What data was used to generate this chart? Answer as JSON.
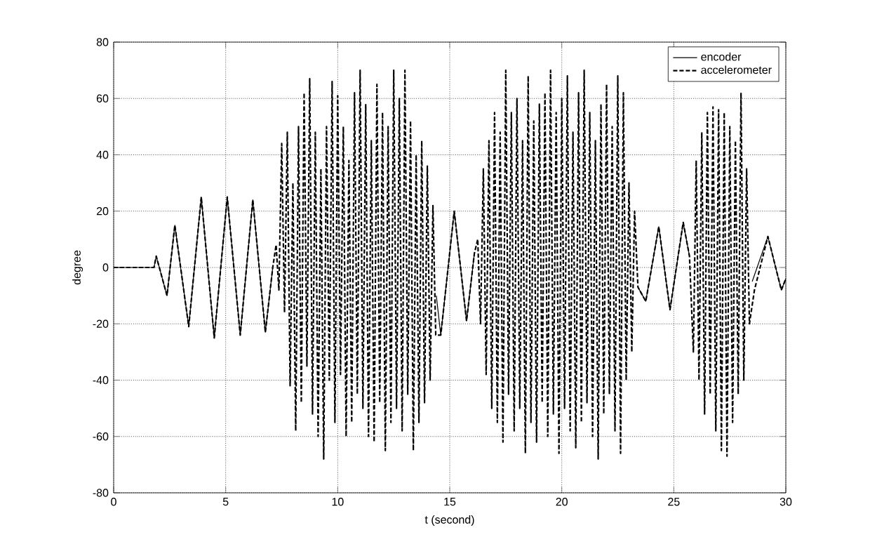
{
  "chart_data": {
    "type": "line",
    "xlabel": "t (second)",
    "ylabel": "degree",
    "xlim": [
      0,
      30
    ],
    "ylim": [
      -80,
      80
    ],
    "xticks": [
      0,
      5,
      10,
      15,
      20,
      25,
      30
    ],
    "yticks": [
      -80,
      -60,
      -40,
      -20,
      0,
      20,
      40,
      60,
      80
    ],
    "grid": true,
    "legend": "top right",
    "series": [
      {
        "name": "encoder",
        "color": "#000000",
        "line_style": "solid",
        "x": [
          0,
          1.8,
          1.9,
          2.38,
          2.73,
          3.35,
          3.91,
          4.49,
          5.07,
          5.65,
          6.21,
          6.77,
          7.1,
          10.8,
          14.4,
          14.6,
          15.2,
          15.75,
          16.1,
          20,
          23.4,
          23.75,
          24.33,
          24.83,
          25.42,
          25.7,
          27,
          28.5,
          29.2,
          29.8,
          30
        ],
        "values": [
          0,
          0,
          4,
          -10,
          15,
          -21,
          25,
          -25,
          25,
          -24,
          24,
          -23,
          0,
          null,
          -10,
          -24,
          20,
          -19,
          5,
          null,
          -7,
          -12,
          14.5,
          -15,
          16,
          4,
          null,
          -5,
          11,
          -8,
          -4
        ]
      },
      {
        "name": "accelerometer",
        "color": "#000000",
        "line_style": "dashed",
        "x": [
          0,
          1.8,
          1.9,
          2.38,
          2.73,
          3.35,
          3.91,
          4.49,
          5.07,
          5.65,
          6.21,
          6.77,
          7.1,
          7.25,
          7.375,
          7.5,
          7.625,
          7.75,
          7.875,
          8.0,
          8.125,
          8.25,
          8.375,
          8.5,
          8.625,
          8.75,
          8.875,
          9.0,
          9.125,
          9.25,
          9.375,
          9.5,
          9.625,
          9.75,
          9.875,
          10.0,
          10.125,
          10.25,
          10.375,
          10.5,
          10.625,
          10.75,
          10.875,
          11.0,
          11.125,
          11.25,
          11.375,
          11.5,
          11.625,
          11.75,
          11.875,
          12.0,
          12.125,
          12.25,
          12.375,
          12.5,
          12.625,
          12.75,
          12.875,
          13.0,
          13.125,
          13.25,
          13.375,
          13.5,
          13.625,
          13.75,
          13.875,
          14.0,
          14.125,
          14.25,
          14.375,
          14.6,
          15.2,
          15.75,
          16.1,
          16.25,
          16.375,
          16.5,
          16.625,
          16.75,
          16.875,
          17.0,
          17.125,
          17.25,
          17.375,
          17.5,
          17.625,
          17.75,
          17.875,
          18.0,
          18.125,
          18.25,
          18.375,
          18.5,
          18.625,
          18.75,
          18.875,
          19.0,
          19.125,
          19.25,
          19.375,
          19.5,
          19.625,
          19.75,
          19.875,
          20.0,
          20.125,
          20.25,
          20.375,
          20.5,
          20.625,
          20.75,
          20.875,
          21.0,
          21.125,
          21.25,
          21.375,
          21.5,
          21.625,
          21.75,
          21.875,
          22.0,
          22.125,
          22.25,
          22.375,
          22.5,
          22.625,
          22.75,
          22.875,
          23.0,
          23.125,
          23.25,
          23.4,
          23.75,
          24.33,
          24.83,
          25.42,
          25.7,
          25.875,
          26.0,
          26.125,
          26.25,
          26.375,
          26.5,
          26.625,
          26.75,
          26.875,
          27.0,
          27.125,
          27.25,
          27.375,
          27.5,
          27.625,
          27.75,
          27.875,
          28.0,
          28.125,
          28.25,
          28.375,
          28.6,
          29.2,
          29.8,
          30
        ],
        "values": [
          0,
          0,
          4,
          -10,
          15,
          -21,
          25,
          -25,
          25,
          -24,
          24,
          -23,
          0,
          8,
          -8,
          44,
          -16,
          48,
          -42,
          30,
          -58,
          50,
          -48,
          62,
          -35,
          67,
          -52,
          48,
          -60,
          35,
          -68,
          50,
          -40,
          66,
          -55,
          61,
          -38,
          50,
          -60,
          38,
          -55,
          62,
          -45,
          70,
          -50,
          58,
          -60,
          45,
          -62,
          65,
          -48,
          55,
          -65,
          50,
          -55,
          70,
          -50,
          60,
          -58,
          70,
          -45,
          52,
          -65,
          40,
          -55,
          45,
          -48,
          36,
          -40,
          22,
          -24,
          -24,
          20,
          -19,
          5,
          10,
          -20,
          35,
          -38,
          45,
          -50,
          55,
          -55,
          48,
          -62,
          70,
          -45,
          55,
          -58,
          60,
          -50,
          45,
          -66,
          68,
          -55,
          52,
          -62,
          58,
          -48,
          62,
          -60,
          70,
          -52,
          55,
          -66,
          60,
          -50,
          68,
          -58,
          48,
          -64,
          62,
          -55,
          70,
          -48,
          55,
          -60,
          45,
          -68,
          58,
          -52,
          65,
          -45,
          50,
          -58,
          68,
          -66,
          62,
          -40,
          30,
          -30,
          20,
          -7,
          -12,
          14.5,
          -15,
          16,
          4,
          -30,
          38,
          -40,
          48,
          -52,
          55,
          -45,
          57,
          -58,
          56,
          -65,
          55,
          -67,
          50,
          -55,
          45,
          -45,
          62,
          -40,
          35,
          -20,
          -8,
          11,
          -8,
          -4
        ]
      }
    ]
  }
}
